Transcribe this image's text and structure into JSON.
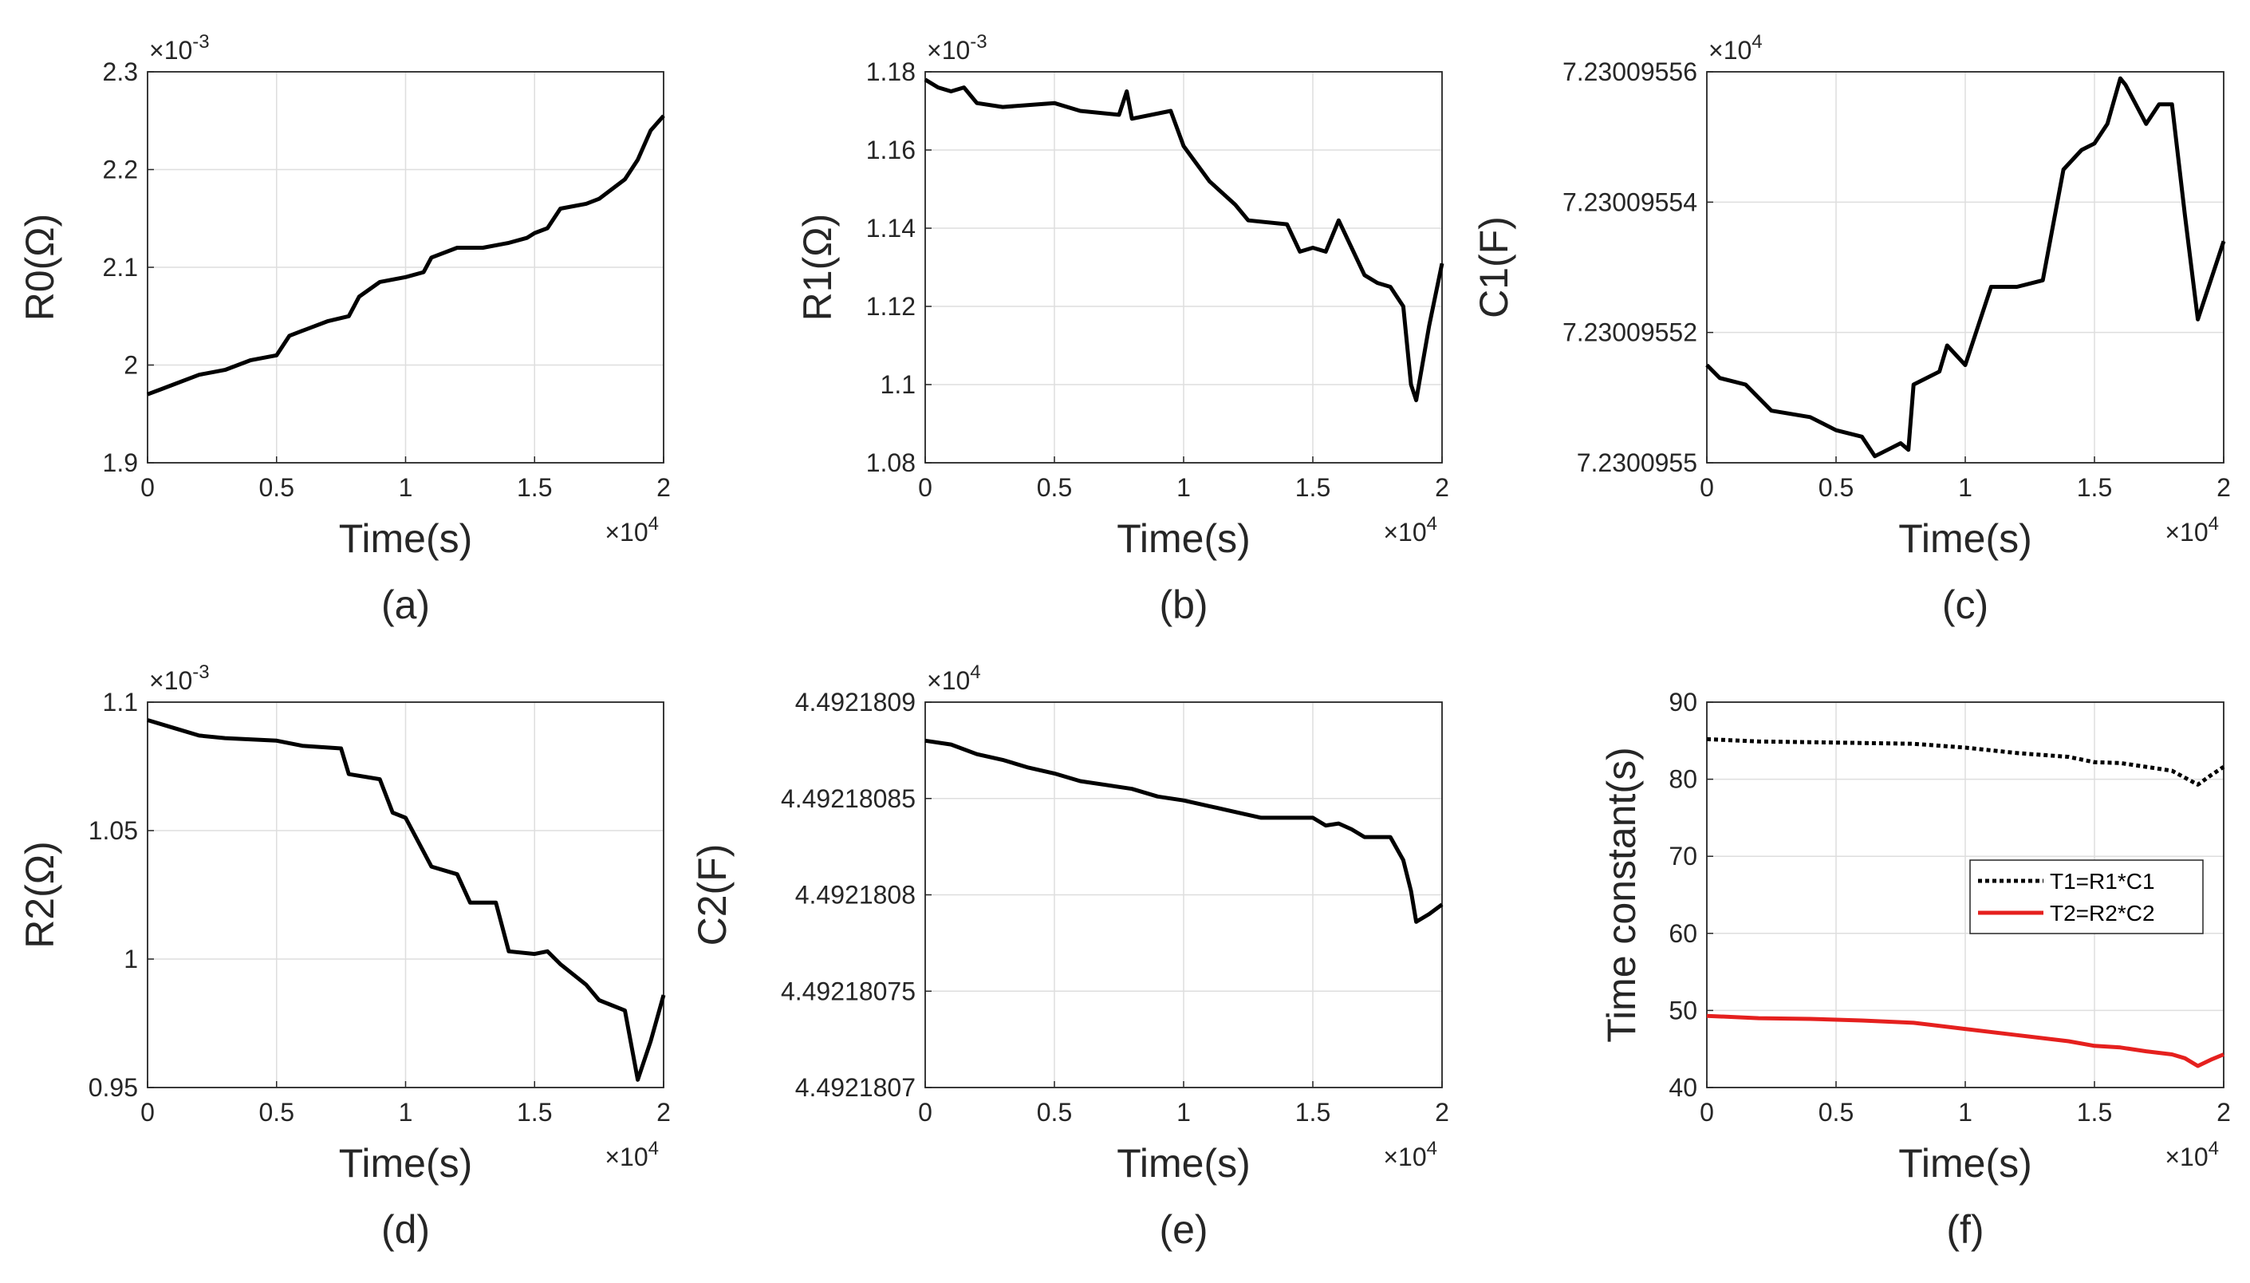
{
  "chart_data": [
    {
      "type": "line",
      "panel": "(a)",
      "ylabel": "R0(Ω)",
      "xlabel": "Time(s)",
      "x_exponent": "×10",
      "x_exponent_power": "4",
      "y_exponent": "×10",
      "y_exponent_power": "-3",
      "xlim": [
        0,
        2
      ],
      "ylim": [
        1.9,
        2.3
      ],
      "xticks": [
        "0",
        "0.5",
        "1",
        "1.5",
        "2"
      ],
      "yticks": [
        "1.9",
        "2",
        "2.1",
        "2.2",
        "2.3"
      ],
      "series": [
        {
          "name": "R0",
          "color": "#000000",
          "style": "solid",
          "x": [
            0,
            0.05,
            0.1,
            0.2,
            0.3,
            0.4,
            0.5,
            0.55,
            0.6,
            0.7,
            0.78,
            0.82,
            0.9,
            1.0,
            1.07,
            1.1,
            1.2,
            1.3,
            1.4,
            1.47,
            1.5,
            1.55,
            1.6,
            1.7,
            1.75,
            1.8,
            1.85,
            1.9,
            1.95,
            2.0
          ],
          "values": [
            1.97,
            1.975,
            1.98,
            1.99,
            1.995,
            2.005,
            2.01,
            2.03,
            2.035,
            2.045,
            2.05,
            2.07,
            2.085,
            2.09,
            2.095,
            2.11,
            2.12,
            2.12,
            2.125,
            2.13,
            2.135,
            2.14,
            2.16,
            2.165,
            2.17,
            2.18,
            2.19,
            2.21,
            2.24,
            2.255
          ]
        }
      ]
    },
    {
      "type": "line",
      "panel": "(b)",
      "ylabel": "R1(Ω)",
      "xlabel": "Time(s)",
      "x_exponent": "×10",
      "x_exponent_power": "4",
      "y_exponent": "×10",
      "y_exponent_power": "-3",
      "xlim": [
        0,
        2
      ],
      "ylim": [
        1.08,
        1.18
      ],
      "xticks": [
        "0",
        "0.5",
        "1",
        "1.5",
        "2"
      ],
      "yticks": [
        "1.08",
        "1.1",
        "1.12",
        "1.14",
        "1.16",
        "1.18"
      ],
      "series": [
        {
          "name": "R1",
          "color": "#000000",
          "style": "solid",
          "x": [
            0,
            0.05,
            0.1,
            0.15,
            0.2,
            0.3,
            0.5,
            0.6,
            0.75,
            0.78,
            0.8,
            0.95,
            1.0,
            1.1,
            1.2,
            1.25,
            1.4,
            1.45,
            1.5,
            1.55,
            1.6,
            1.65,
            1.7,
            1.75,
            1.8,
            1.85,
            1.88,
            1.9,
            1.95,
            2.0
          ],
          "values": [
            1.178,
            1.176,
            1.175,
            1.176,
            1.172,
            1.171,
            1.172,
            1.17,
            1.169,
            1.175,
            1.168,
            1.17,
            1.161,
            1.152,
            1.146,
            1.142,
            1.141,
            1.134,
            1.135,
            1.134,
            1.142,
            1.135,
            1.128,
            1.126,
            1.125,
            1.12,
            1.1,
            1.096,
            1.115,
            1.131
          ]
        }
      ]
    },
    {
      "type": "line",
      "panel": "(c)",
      "ylabel": "C1(F)",
      "xlabel": "Time(s)",
      "x_exponent": "×10",
      "x_exponent_power": "4",
      "y_exponent": "×10",
      "y_exponent_power": "4",
      "xlim": [
        0,
        2
      ],
      "ylim": [
        7.2300955,
        7.23009556
      ],
      "xticks": [
        "0",
        "0.5",
        "1",
        "1.5",
        "2"
      ],
      "yticks": [
        "7.2300955",
        "7.23009552",
        "7.23009554",
        "7.23009556"
      ],
      "series": [
        {
          "name": "C1",
          "color": "#000000",
          "style": "solid",
          "x": [
            0,
            0.05,
            0.15,
            0.25,
            0.4,
            0.5,
            0.6,
            0.65,
            0.7,
            0.75,
            0.78,
            0.8,
            0.9,
            0.93,
            1.0,
            1.1,
            1.2,
            1.3,
            1.38,
            1.45,
            1.5,
            1.55,
            1.6,
            1.62,
            1.7,
            1.75,
            1.8,
            1.85,
            1.9,
            1.95,
            2.0
          ],
          "values": [
            7.230095515,
            7.230095513,
            7.230095512,
            7.230095508,
            7.230095507,
            7.230095505,
            7.230095504,
            7.230095501,
            7.230095502,
            7.230095503,
            7.230095502,
            7.230095512,
            7.230095514,
            7.230095518,
            7.230095515,
            7.230095527,
            7.230095527,
            7.230095528,
            7.230095545,
            7.230095548,
            7.230095549,
            7.230095552,
            7.230095559,
            7.230095558,
            7.230095552,
            7.230095555,
            7.230095555,
            7.230095538,
            7.230095522,
            7.230095528,
            7.230095534
          ]
        }
      ]
    },
    {
      "type": "line",
      "panel": "(d)",
      "ylabel": "R2(Ω)",
      "xlabel": "Time(s)",
      "x_exponent": "×10",
      "x_exponent_power": "4",
      "y_exponent": "×10",
      "y_exponent_power": "-3",
      "xlim": [
        0,
        2
      ],
      "ylim": [
        0.95,
        1.1
      ],
      "xticks": [
        "0",
        "0.5",
        "1",
        "1.5",
        "2"
      ],
      "yticks": [
        "0.95",
        "1",
        "1.05",
        "1.1"
      ],
      "series": [
        {
          "name": "R2",
          "color": "#000000",
          "style": "solid",
          "x": [
            0,
            0.1,
            0.2,
            0.3,
            0.5,
            0.6,
            0.75,
            0.78,
            0.9,
            0.95,
            1.0,
            1.1,
            1.2,
            1.25,
            1.35,
            1.4,
            1.5,
            1.55,
            1.6,
            1.7,
            1.75,
            1.8,
            1.85,
            1.9,
            1.95,
            2.0
          ],
          "values": [
            1.093,
            1.09,
            1.087,
            1.086,
            1.085,
            1.083,
            1.082,
            1.072,
            1.07,
            1.057,
            1.055,
            1.036,
            1.033,
            1.022,
            1.022,
            1.003,
            1.002,
            1.003,
            0.998,
            0.99,
            0.984,
            0.982,
            0.98,
            0.953,
            0.968,
            0.986
          ]
        }
      ]
    },
    {
      "type": "line",
      "panel": "(e)",
      "ylabel": "C2(F)",
      "xlabel": "Time(s)",
      "x_exponent": "×10",
      "x_exponent_power": "4",
      "y_exponent": "×10",
      "y_exponent_power": "4",
      "xlim": [
        0,
        2
      ],
      "ylim": [
        4.4921807,
        4.4921809
      ],
      "xticks": [
        "0",
        "0.5",
        "1",
        "1.5",
        "2"
      ],
      "yticks": [
        "4.4921807",
        "4.49218075",
        "4.4921808",
        "4.49218085",
        "4.4921809"
      ],
      "series": [
        {
          "name": "C2",
          "color": "#000000",
          "style": "solid",
          "x": [
            0,
            0.1,
            0.2,
            0.3,
            0.4,
            0.5,
            0.6,
            0.7,
            0.8,
            0.9,
            1.0,
            1.1,
            1.2,
            1.3,
            1.4,
            1.5,
            1.55,
            1.6,
            1.65,
            1.7,
            1.75,
            1.8,
            1.85,
            1.88,
            1.9,
            1.95,
            2.0
          ],
          "values": [
            4.49218088,
            4.492180878,
            4.492180873,
            4.49218087,
            4.492180866,
            4.492180863,
            4.492180859,
            4.492180857,
            4.492180855,
            4.492180851,
            4.492180849,
            4.492180846,
            4.492180843,
            4.49218084,
            4.49218084,
            4.49218084,
            4.492180836,
            4.492180837,
            4.492180834,
            4.49218083,
            4.49218083,
            4.49218083,
            4.492180818,
            4.492180802,
            4.492180786,
            4.49218079,
            4.492180795
          ]
        }
      ]
    },
    {
      "type": "line",
      "panel": "(f)",
      "ylabel": "Time constant(s)",
      "xlabel": "Time(s)",
      "x_exponent": "×10",
      "x_exponent_power": "4",
      "xlim": [
        0,
        2
      ],
      "ylim": [
        40,
        90
      ],
      "xticks": [
        "0",
        "0.5",
        "1",
        "1.5",
        "2"
      ],
      "yticks": [
        "40",
        "50",
        "60",
        "70",
        "80",
        "90"
      ],
      "legend": "center-right",
      "series": [
        {
          "name": "T1=R1*C1",
          "color": "#000000",
          "style": "dotted",
          "x": [
            0,
            0.2,
            0.4,
            0.6,
            0.8,
            1.0,
            1.2,
            1.4,
            1.5,
            1.6,
            1.7,
            1.8,
            1.85,
            1.9,
            1.95,
            2.0
          ],
          "values": [
            85.2,
            84.9,
            84.8,
            84.7,
            84.6,
            84.1,
            83.4,
            82.9,
            82.2,
            82.1,
            81.6,
            81.1,
            80.2,
            79.3,
            80.5,
            81.6
          ]
        },
        {
          "name": "T2=R2*C2",
          "color": "#e5201e",
          "style": "solid",
          "x": [
            0,
            0.2,
            0.4,
            0.6,
            0.8,
            1.0,
            1.2,
            1.4,
            1.5,
            1.6,
            1.7,
            1.8,
            1.85,
            1.9,
            1.95,
            2.0
          ],
          "values": [
            49.3,
            49.0,
            48.9,
            48.7,
            48.4,
            47.6,
            46.8,
            46.0,
            45.4,
            45.2,
            44.7,
            44.3,
            43.8,
            42.8,
            43.6,
            44.3
          ]
        }
      ]
    }
  ]
}
